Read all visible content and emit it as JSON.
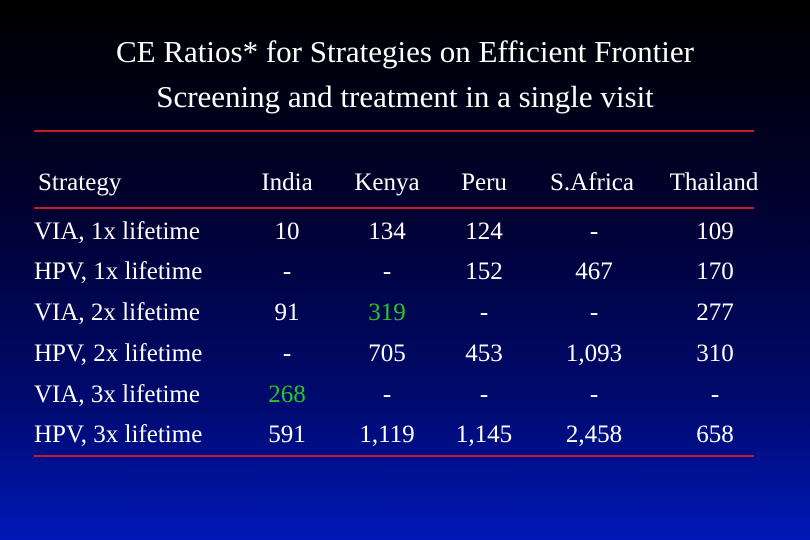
{
  "title": {
    "line1": "CE Ratios* for Strategies on Efficient Frontier",
    "line2": "Screening and treatment in a single visit"
  },
  "table": {
    "headers": [
      "Strategy",
      "India",
      "Kenya",
      "Peru",
      "S.Africa",
      "Thailand"
    ],
    "rows": [
      {
        "strategy": "VIA, 1x lifetime",
        "india": "10",
        "kenya": "134",
        "peru": "124",
        "safrica": "-",
        "thailand": "109"
      },
      {
        "strategy": "HPV, 1x lifetime",
        "india": "-",
        "kenya": "-",
        "peru": "152",
        "safrica": "467",
        "thailand": "170"
      },
      {
        "strategy": "VIA, 2x lifetime",
        "india": "91",
        "kenya": "319",
        "peru": "-",
        "safrica": "-",
        "thailand": "277"
      },
      {
        "strategy": "HPV, 2x lifetime",
        "india": "-",
        "kenya": "705",
        "peru": "453",
        "safrica": "1,093",
        "thailand": "310"
      },
      {
        "strategy": "VIA, 3x lifetime",
        "india": "268",
        "kenya": "-",
        "peru": "-",
        "safrica": "-",
        "thailand": "-"
      },
      {
        "strategy": "HPV, 3x lifetime",
        "india": "591",
        "kenya": "1,119",
        "peru": "1,145",
        "safrica": "2,458",
        "thailand": "658"
      }
    ],
    "highlight_color": "#27c62a",
    "rule_color": "#c8182a"
  }
}
